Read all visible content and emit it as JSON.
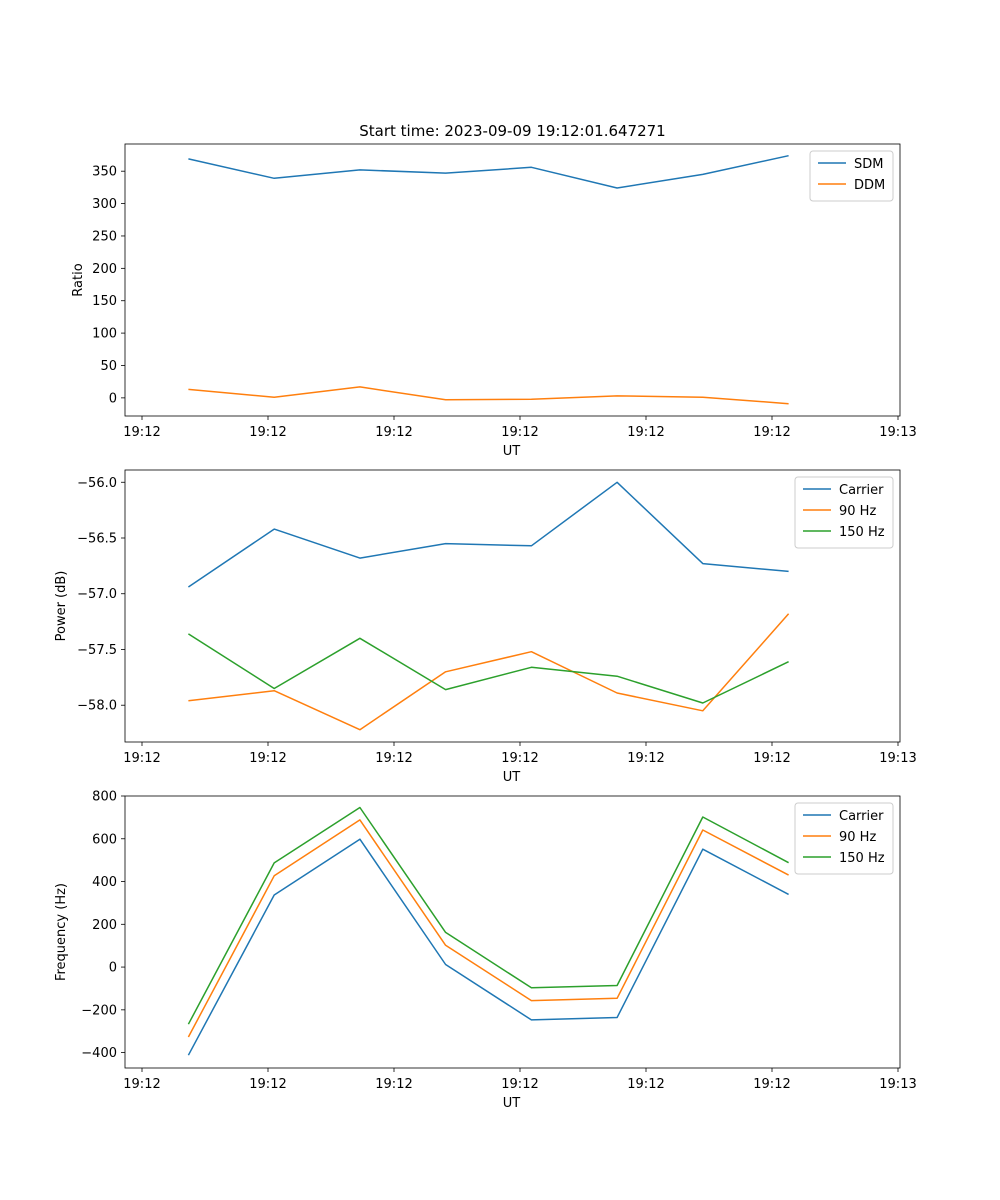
{
  "chart_data": [
    {
      "type": "line",
      "title": "Start time: 2023-09-09 19:12:01.647271",
      "xlabel": "UT",
      "ylabel": "Ratio",
      "x_tick_labels": [
        "19:12",
        "19:12",
        "19:12",
        "19:12",
        "19:12",
        "19:12",
        "19:13"
      ],
      "y_ticks": [
        0,
        50,
        100,
        150,
        200,
        250,
        300,
        350
      ],
      "ylim": [
        -28,
        392
      ],
      "x": [
        1,
        2,
        3,
        4,
        5,
        6,
        7,
        8
      ],
      "xlim": [
        0.26,
        9.3
      ],
      "legend_position": "upper-right",
      "series": [
        {
          "name": "SDM",
          "color": "#1f77b4",
          "values": [
            369,
            339,
            352,
            347,
            356,
            324,
            345,
            374
          ]
        },
        {
          "name": "DDM",
          "color": "#ff7f0e",
          "values": [
            13,
            1,
            17,
            -3,
            -2,
            3,
            1,
            -9
          ]
        }
      ]
    },
    {
      "type": "line",
      "title": "",
      "xlabel": "UT",
      "ylabel": "Power (dB)",
      "x_tick_labels": [
        "19:12",
        "19:12",
        "19:12",
        "19:12",
        "19:12",
        "19:12",
        "19:13"
      ],
      "y_ticks": [
        -58.0,
        -57.5,
        -57.0,
        -56.5,
        -56.0
      ],
      "y_tick_labels": [
        "−58.0",
        "−57.5",
        "−57.0",
        "−56.5",
        "−56.0"
      ],
      "ylim": [
        -58.33,
        -55.89
      ],
      "x": [
        1,
        2,
        3,
        4,
        5,
        6,
        7,
        8
      ],
      "xlim": [
        0.26,
        9.3
      ],
      "legend_position": "upper-right",
      "series": [
        {
          "name": "Carrier",
          "color": "#1f77b4",
          "values": [
            -56.94,
            -56.42,
            -56.68,
            -56.55,
            -56.57,
            -56.0,
            -56.73,
            -56.8
          ]
        },
        {
          "name": "90 Hz",
          "color": "#ff7f0e",
          "values": [
            -57.96,
            -57.87,
            -58.22,
            -57.7,
            -57.52,
            -57.89,
            -58.05,
            -57.18
          ]
        },
        {
          "name": "150 Hz",
          "color": "#2ca02c",
          "values": [
            -57.36,
            -57.85,
            -57.4,
            -57.86,
            -57.66,
            -57.74,
            -57.98,
            -57.61
          ]
        }
      ]
    },
    {
      "type": "line",
      "title": "",
      "xlabel": "UT",
      "ylabel": "Frequency (Hz)",
      "x_tick_labels": [
        "19:12",
        "19:12",
        "19:12",
        "19:12",
        "19:12",
        "19:12",
        "19:13"
      ],
      "y_ticks": [
        -400,
        -200,
        0,
        200,
        400,
        600,
        800
      ],
      "y_tick_labels": [
        "−400",
        "−200",
        "0",
        "200",
        "400",
        "600",
        "800"
      ],
      "ylim": [
        -472,
        800
      ],
      "x": [
        1,
        2,
        3,
        4,
        5,
        6,
        7,
        8
      ],
      "xlim": [
        0.26,
        9.3
      ],
      "legend_position": "upper-right",
      "series": [
        {
          "name": "Carrier",
          "color": "#1f77b4",
          "values": [
            -412,
            337,
            598,
            12,
            -247,
            -236,
            551,
            340
          ]
        },
        {
          "name": "90 Hz",
          "color": "#ff7f0e",
          "values": [
            -327,
            427,
            688,
            102,
            -157,
            -146,
            641,
            430
          ]
        },
        {
          "name": "150 Hz",
          "color": "#2ca02c",
          "values": [
            -267,
            487,
            746,
            162,
            -97,
            -86,
            702,
            488
          ]
        }
      ]
    }
  ]
}
